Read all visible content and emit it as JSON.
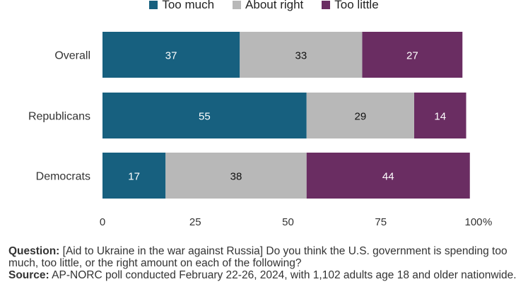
{
  "chart_data": {
    "type": "bar",
    "orientation": "horizontal",
    "stacked": true,
    "categories": [
      "Overall",
      "Republicans",
      "Democrats"
    ],
    "series": [
      {
        "name": "Too much",
        "color": "#17607f",
        "values": [
          37,
          55,
          17
        ]
      },
      {
        "name": "About right",
        "color": "#b8b8b8",
        "values": [
          33,
          29,
          38
        ]
      },
      {
        "name": "Too little",
        "color": "#6a2d62",
        "values": [
          27,
          14,
          44
        ]
      }
    ],
    "xticks": [
      "0",
      "25",
      "50",
      "75",
      "100"
    ],
    "xunit": "%",
    "xlim": [
      0,
      100
    ],
    "legend_position": "top",
    "grid": false
  },
  "notes": {
    "question_label": "Question:",
    "question_text": " [Aid to Ukraine in the war against Russia] Do you think the U.S. government is spending too much, too little, or the right amount on each of the following?",
    "source_label": "Source:",
    "source_text": " AP-NORC poll conducted February 22-26, 2024, with 1,102 adults age 18 and older nationwide."
  }
}
